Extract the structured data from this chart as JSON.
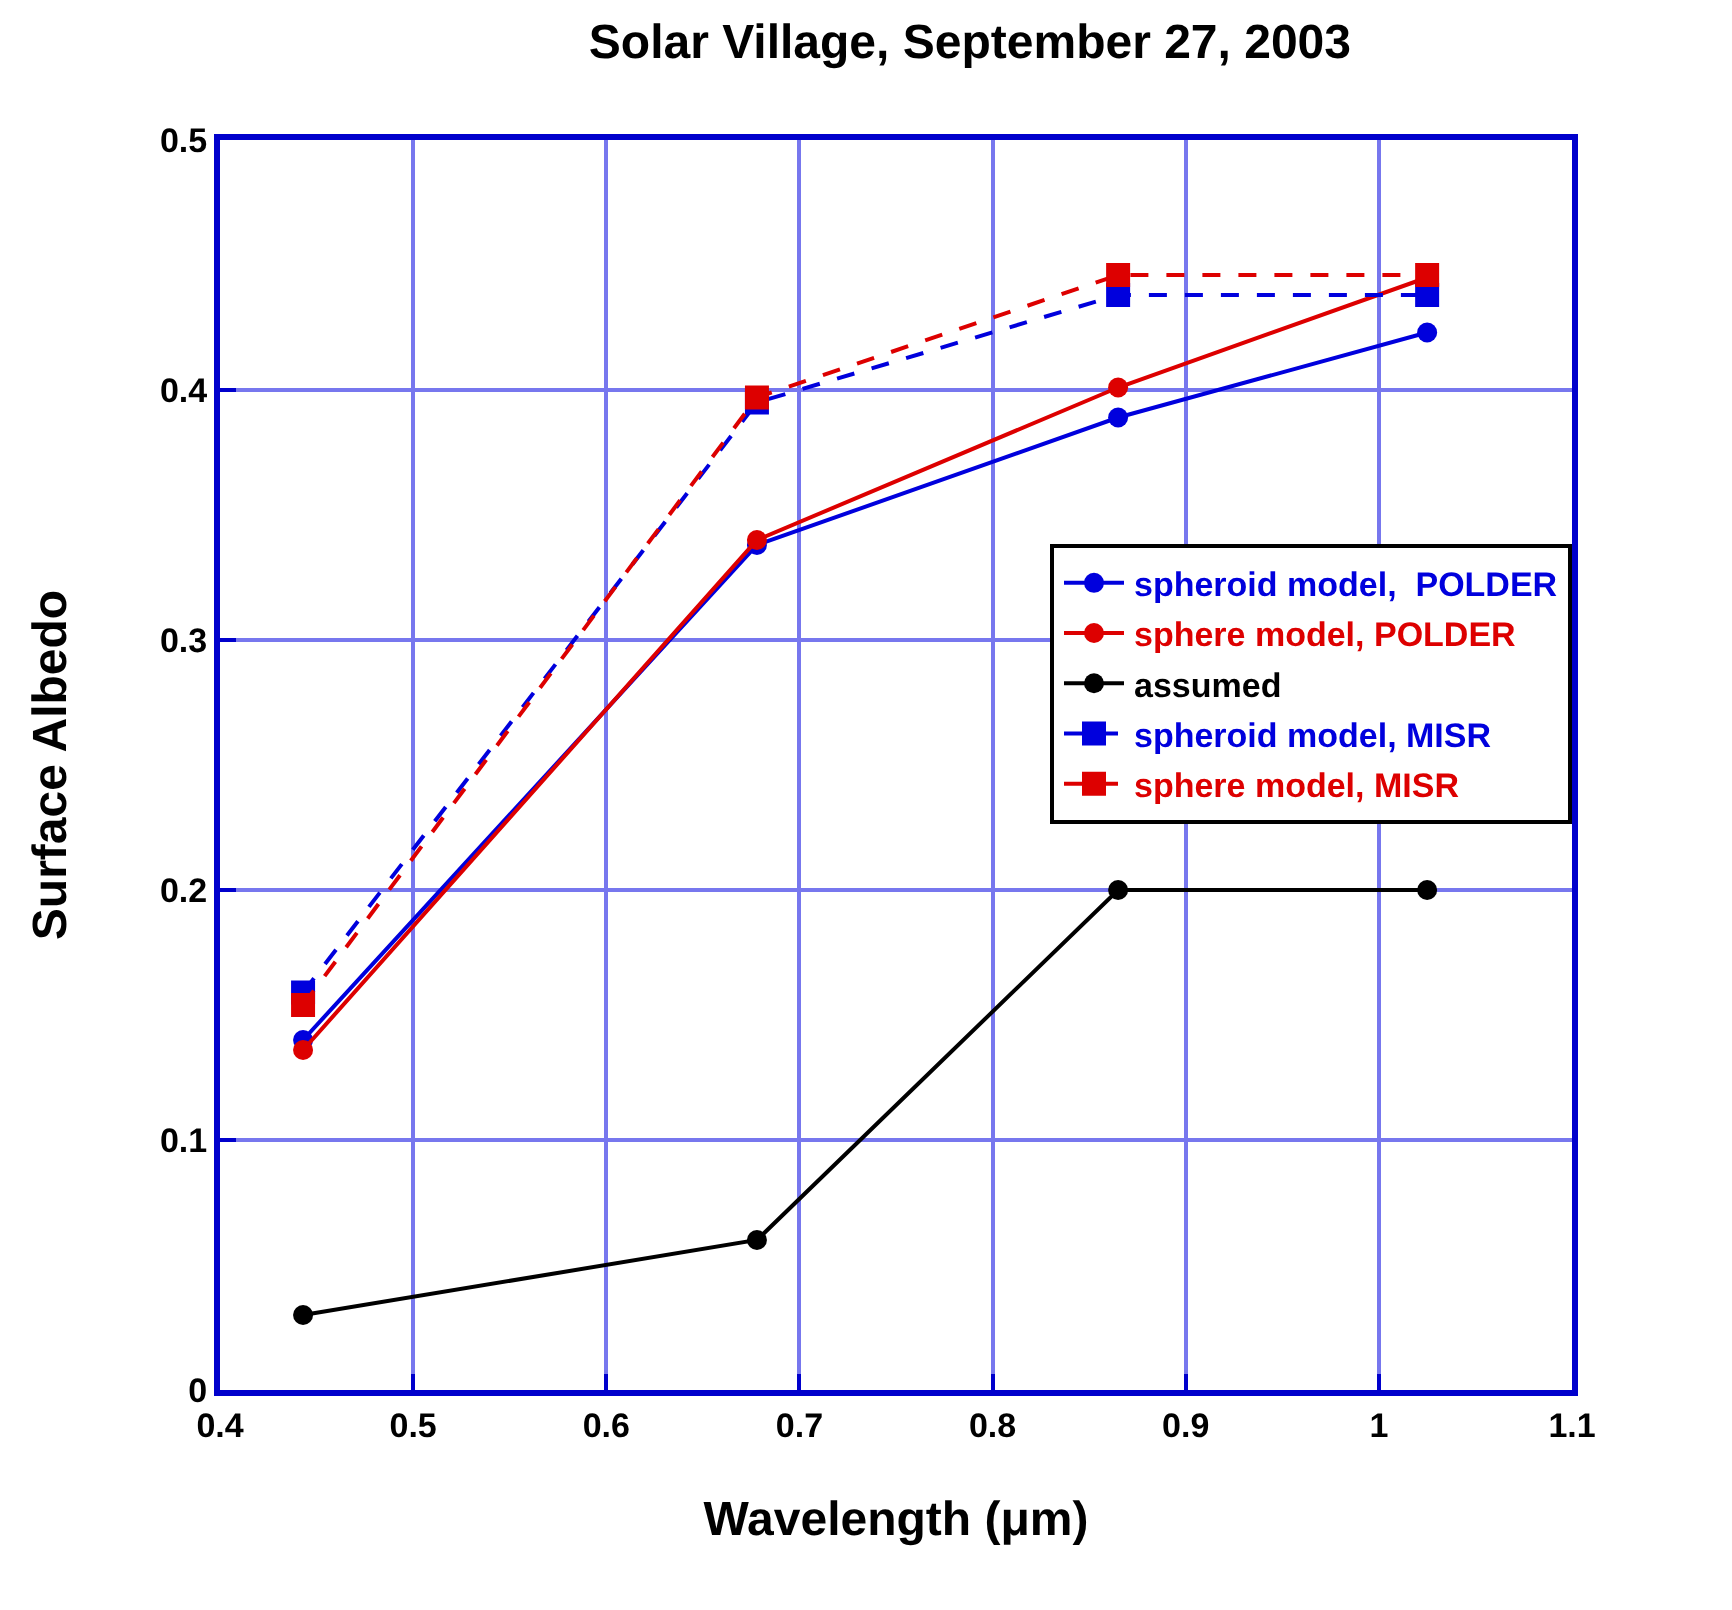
{
  "chart_data": {
    "type": "line",
    "title": "Solar Village, September 27, 2003",
    "xlabel": "Wavelength (μm)",
    "ylabel": "Surface Albedo",
    "x": [
      0.443,
      0.678,
      0.865,
      1.025
    ],
    "series": [
      {
        "name": "spheroid model,  POLDER",
        "color": "#0000dd",
        "values": [
          0.14,
          0.338,
          0.389,
          0.423
        ],
        "marker": "circle",
        "line_style": "solid"
      },
      {
        "name": "sphere model, POLDER",
        "color": "#dd0000",
        "values": [
          0.136,
          0.34,
          0.401,
          0.445
        ],
        "marker": "circle",
        "line_style": "solid"
      },
      {
        "name": "assumed",
        "color": "#000000",
        "values": [
          0.03,
          0.06,
          0.2,
          0.2
        ],
        "marker": "circle",
        "line_style": "solid"
      },
      {
        "name": "spheroid model, MISR",
        "color": "#0000dd",
        "values": [
          0.159,
          0.395,
          0.438,
          0.438
        ],
        "marker": "square",
        "line_style": "dashed"
      },
      {
        "name": "sphere model, MISR",
        "color": "#dd0000",
        "values": [
          0.154,
          0.397,
          0.446,
          0.446
        ],
        "marker": "square",
        "line_style": "dashed"
      }
    ],
    "xlim": [
      0.4,
      1.1
    ],
    "xticks": [
      0.4,
      0.5,
      0.6,
      0.7,
      0.8,
      0.9,
      1,
      1.1
    ],
    "ylim": [
      0,
      0.5
    ],
    "yticks": [
      0,
      0.1,
      0.2,
      0.3,
      0.4,
      0.5
    ],
    "grid": true,
    "legend": "right"
  }
}
